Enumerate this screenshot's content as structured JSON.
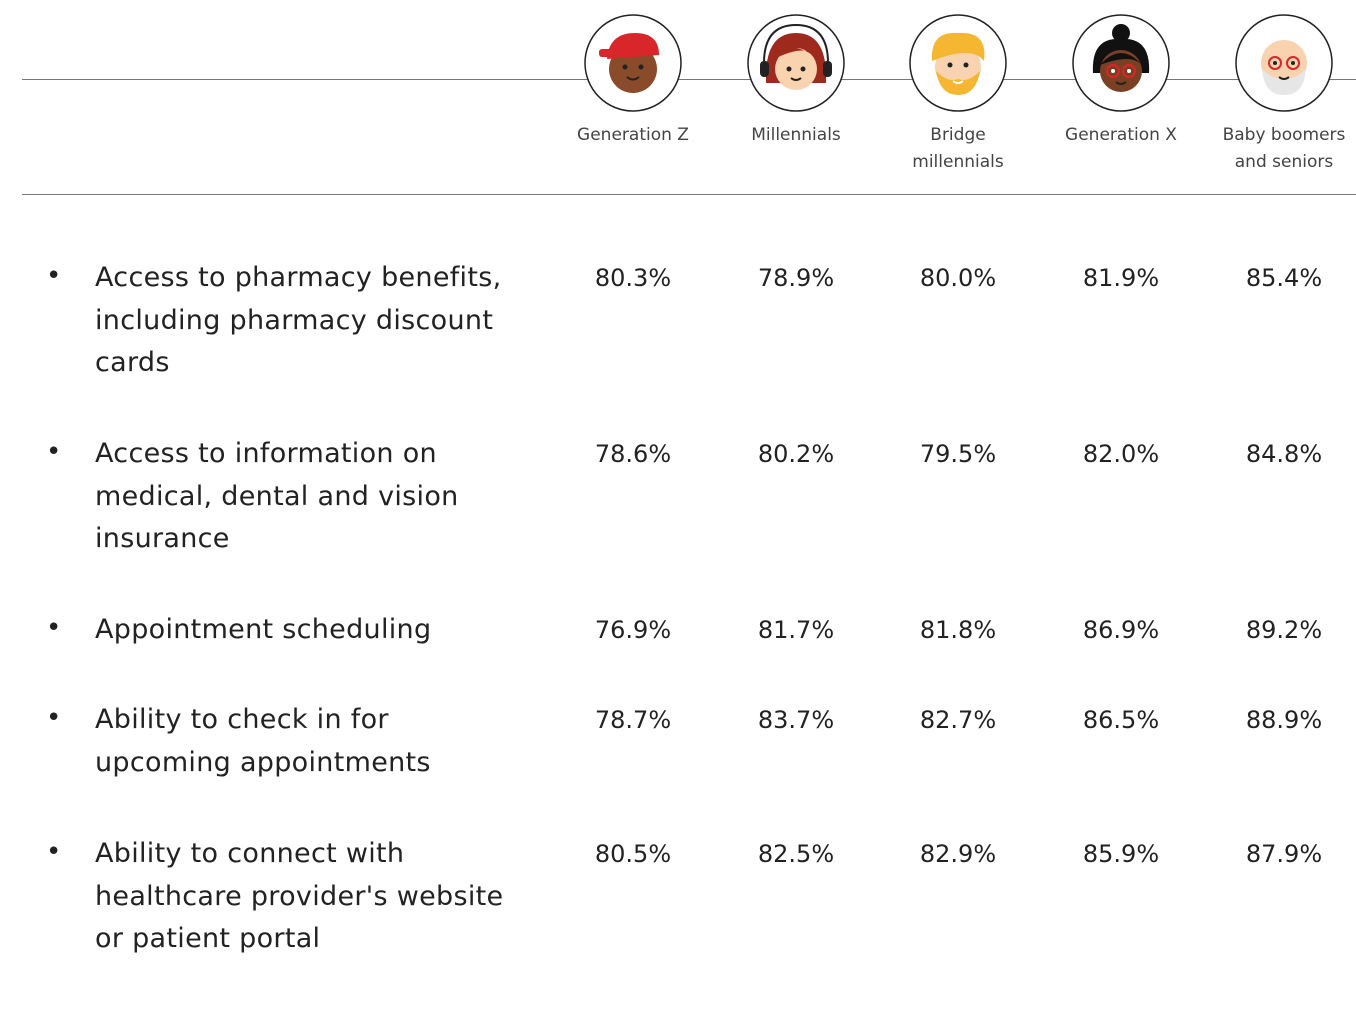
{
  "table": {
    "columns": [
      "Generation Z",
      "Millennials",
      "Bridge millennials",
      "Generation X",
      "Baby boomers and seniors"
    ],
    "rows": [
      {
        "label": "Access to pharmacy benefits, including pharmacy discount cards",
        "values": [
          "80.3%",
          "78.9%",
          "80.0%",
          "81.9%",
          "85.4%"
        ]
      },
      {
        "label": "Access to information on medical, dental and vision insurance",
        "values": [
          "78.6%",
          "80.2%",
          "79.5%",
          "82.0%",
          "84.8%"
        ]
      },
      {
        "label": "Appointment scheduling",
        "values": [
          "76.9%",
          "81.7%",
          "81.8%",
          "86.9%",
          "89.2%"
        ]
      },
      {
        "label": "Ability to check in for upcoming appointments",
        "values": [
          "78.7%",
          "83.7%",
          "82.7%",
          "86.5%",
          "88.9%"
        ]
      },
      {
        "label": "Ability to connect with healthcare provider's website or patient portal",
        "values": [
          "80.5%",
          "82.5%",
          "82.9%",
          "85.9%",
          "87.9%"
        ]
      }
    ]
  }
}
